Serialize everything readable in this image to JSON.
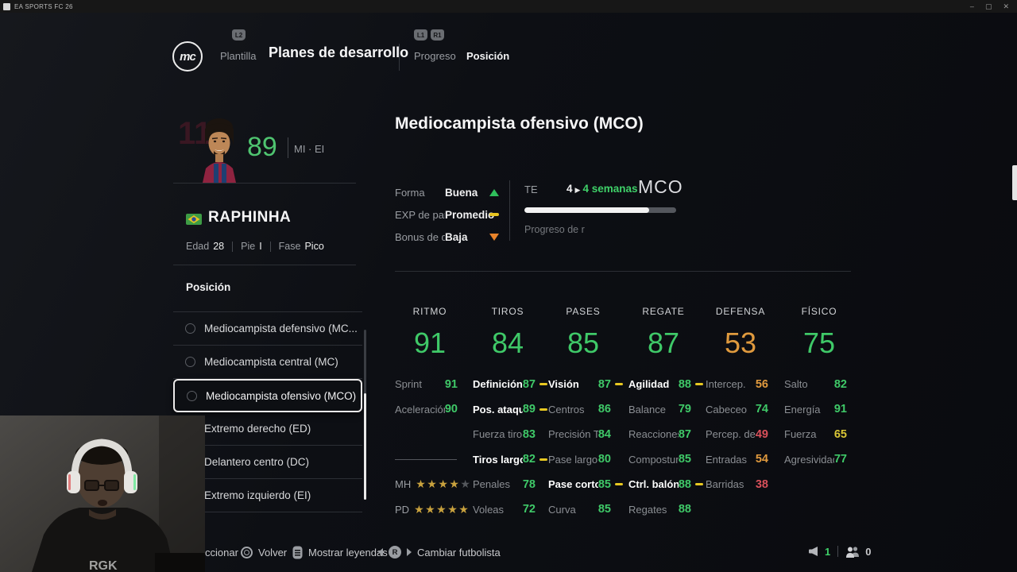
{
  "window": {
    "title": "EA SPORTS FC 26",
    "minimize": "–",
    "maximize": "▢",
    "close": "✕"
  },
  "nav": {
    "logo_text": "mc",
    "badges": {
      "l2": "L2",
      "l1": "L1",
      "r1": "R1"
    },
    "tabs": [
      {
        "label": "Plantilla"
      },
      {
        "label": "Planes de desarrollo"
      },
      {
        "label": "Progreso"
      },
      {
        "label": "Posición"
      }
    ]
  },
  "player": {
    "jersey_number": "11",
    "rating": "89",
    "alt_positions": "MI · EI",
    "name": "RAPHINHA",
    "flag": "brazil-flag",
    "details": [
      {
        "label": "Edad",
        "value": "28"
      },
      {
        "label": "Pie",
        "value": "I"
      },
      {
        "label": "Fase",
        "value": "Pico"
      }
    ]
  },
  "position_panel": {
    "title": "Posición",
    "items": [
      {
        "label": "Mediocampista defensivo (MC...",
        "selected": false
      },
      {
        "label": "Mediocampista central (MC)",
        "selected": false
      },
      {
        "label": "Mediocampista ofensivo (MCO)",
        "selected": true
      },
      {
        "label": "Extremo derecho (ED)",
        "selected": false
      },
      {
        "label": "Delantero centro (DC)",
        "selected": false
      },
      {
        "label": "Extremo izquierdo (EI)",
        "selected": false
      }
    ]
  },
  "plan": {
    "title": "Mediocampista ofensivo (MCO)",
    "status": [
      {
        "label": "Forma",
        "value": "Buena",
        "trend": "up"
      },
      {
        "label": "EXP de parti",
        "value": "Promedio",
        "trend": "flat"
      },
      {
        "label": "Bonus de des",
        "value": "Baja",
        "trend": "down"
      }
    ],
    "te_label": "TE",
    "te_current": "4",
    "te_duration": "4 semanas",
    "te_position": "MCO",
    "progress_pct": 82,
    "progress_caption": "Progreso de r"
  },
  "categories": [
    {
      "name": "RITMO",
      "value": "91",
      "tier": "green"
    },
    {
      "name": "TIROS",
      "value": "84",
      "tier": "green"
    },
    {
      "name": "PASES",
      "value": "85",
      "tier": "green"
    },
    {
      "name": "REGATE",
      "value": "87",
      "tier": "green"
    },
    {
      "name": "DEFENSA",
      "value": "53",
      "tier": "orange"
    },
    {
      "name": "FÍSICO",
      "value": "75",
      "tier": "green"
    }
  ],
  "stats": {
    "columns": [
      {
        "cells": [
          {
            "label": "Sprint",
            "value": "91",
            "tier": "green"
          },
          {
            "label": "Aceleración",
            "value": "90",
            "tier": "green"
          },
          {
            "spacer": true
          },
          {
            "divider": true
          },
          {
            "stars": {
              "label": "MH",
              "filled": 4,
              "total": 5
            }
          },
          {
            "stars": {
              "label": "PD",
              "filled": 5,
              "total": 5
            }
          }
        ]
      },
      {
        "cells": [
          {
            "label": "Definición",
            "value": "87",
            "tier": "green",
            "focus": true
          },
          {
            "label": "Pos. ataque",
            "value": "89",
            "tier": "green",
            "focus": true
          },
          {
            "label": "Fuerza tiro",
            "value": "83",
            "tier": "green"
          },
          {
            "label": "Tiros largos",
            "value": "82",
            "tier": "green",
            "focus": true
          },
          {
            "label": "Penales",
            "value": "78",
            "tier": "green"
          },
          {
            "label": "Voleas",
            "value": "72",
            "tier": "green"
          }
        ]
      },
      {
        "cells": [
          {
            "label": "Visión",
            "value": "87",
            "tier": "green",
            "focus": true
          },
          {
            "label": "Centros",
            "value": "86",
            "tier": "green"
          },
          {
            "label": "Precisión TL",
            "value": "84",
            "tier": "green"
          },
          {
            "label": "Pase largo",
            "value": "80",
            "tier": "green"
          },
          {
            "label": "Pase corto",
            "value": "85",
            "tier": "green",
            "focus": true
          },
          {
            "label": "Curva",
            "value": "85",
            "tier": "green"
          }
        ]
      },
      {
        "cells": [
          {
            "label": "Agilidad",
            "value": "88",
            "tier": "green",
            "focus": true
          },
          {
            "label": "Balance",
            "value": "79",
            "tier": "green"
          },
          {
            "label": "Reacciones",
            "value": "87",
            "tier": "green"
          },
          {
            "label": "Compostura",
            "value": "85",
            "tier": "green"
          },
          {
            "label": "Ctrl. balón",
            "value": "88",
            "tier": "green",
            "focus": true
          },
          {
            "label": "Regates",
            "value": "88",
            "tier": "green"
          }
        ]
      },
      {
        "cells": [
          {
            "label": "Intercep.",
            "value": "56",
            "tier": "orange"
          },
          {
            "label": "Cabeceo",
            "value": "74",
            "tier": "green"
          },
          {
            "label": "Percep. def.",
            "value": "49",
            "tier": "red"
          },
          {
            "label": "Entradas",
            "value": "54",
            "tier": "orange"
          },
          {
            "label": "Barridas",
            "value": "38",
            "tier": "red"
          }
        ]
      },
      {
        "cells": [
          {
            "label": "Salto",
            "value": "82",
            "tier": "green"
          },
          {
            "label": "Energía",
            "value": "91",
            "tier": "green"
          },
          {
            "label": "Fuerza",
            "value": "65",
            "tier": "yellow"
          },
          {
            "label": "Agresividad",
            "value": "77",
            "tier": "green"
          }
        ]
      }
    ]
  },
  "footer": {
    "hints": [
      {
        "label": "ccionar"
      },
      {
        "label": "Volver"
      },
      {
        "label": "Mostrar leyendas"
      },
      {
        "label": "Cambiar futbolista"
      }
    ],
    "voice_count": "1",
    "social_count": "0"
  },
  "colors": {
    "stat_green": "#3fc968",
    "stat_yellow": "#d9c636",
    "stat_orange": "#e09a3e",
    "stat_red": "#d8505a",
    "focus_dash": "#e8c821",
    "star_gold": "#c9a23e",
    "trend_up": "#2fbf5c",
    "trend_flat": "#e6c321",
    "trend_down": "#e8832a"
  }
}
